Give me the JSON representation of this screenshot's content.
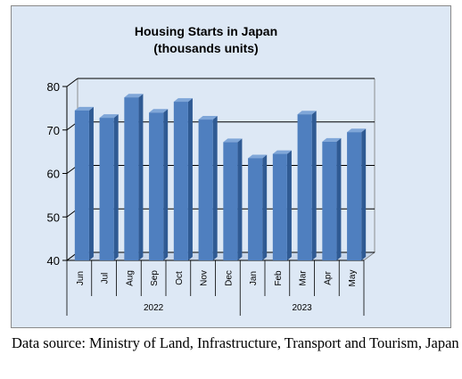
{
  "chart_data": {
    "type": "bar",
    "title_lines": [
      "Housing Starts in Japan",
      "(thousands units)"
    ],
    "categories": [
      "Jun",
      "Jul",
      "Aug",
      "Sep",
      "Oct",
      "Nov",
      "Dec",
      "Jan",
      "Feb",
      "Mar",
      "Apr",
      "May"
    ],
    "groups": [
      {
        "label": "2022",
        "count": 7
      },
      {
        "label": "2023",
        "count": 5
      }
    ],
    "values": [
      74.5,
      72.8,
      77.5,
      74.0,
      76.5,
      72.4,
      67.2,
      63.5,
      64.5,
      73.6,
      67.3,
      69.5
    ],
    "ylim": [
      40,
      80
    ],
    "yticks": [
      "40",
      "50",
      "60",
      "70",
      "80"
    ],
    "grid": true,
    "legend": "none",
    "colors": {
      "plot_bg": "#dde8f5",
      "bar_front": "#4f7fbf",
      "bar_side": "#2f5a93",
      "bar_top": "#7fa6d8",
      "grid": "#000000"
    }
  },
  "source_note": "Data source: Ministry of Land, Infrastructure, Transport and Tourism, Japan"
}
